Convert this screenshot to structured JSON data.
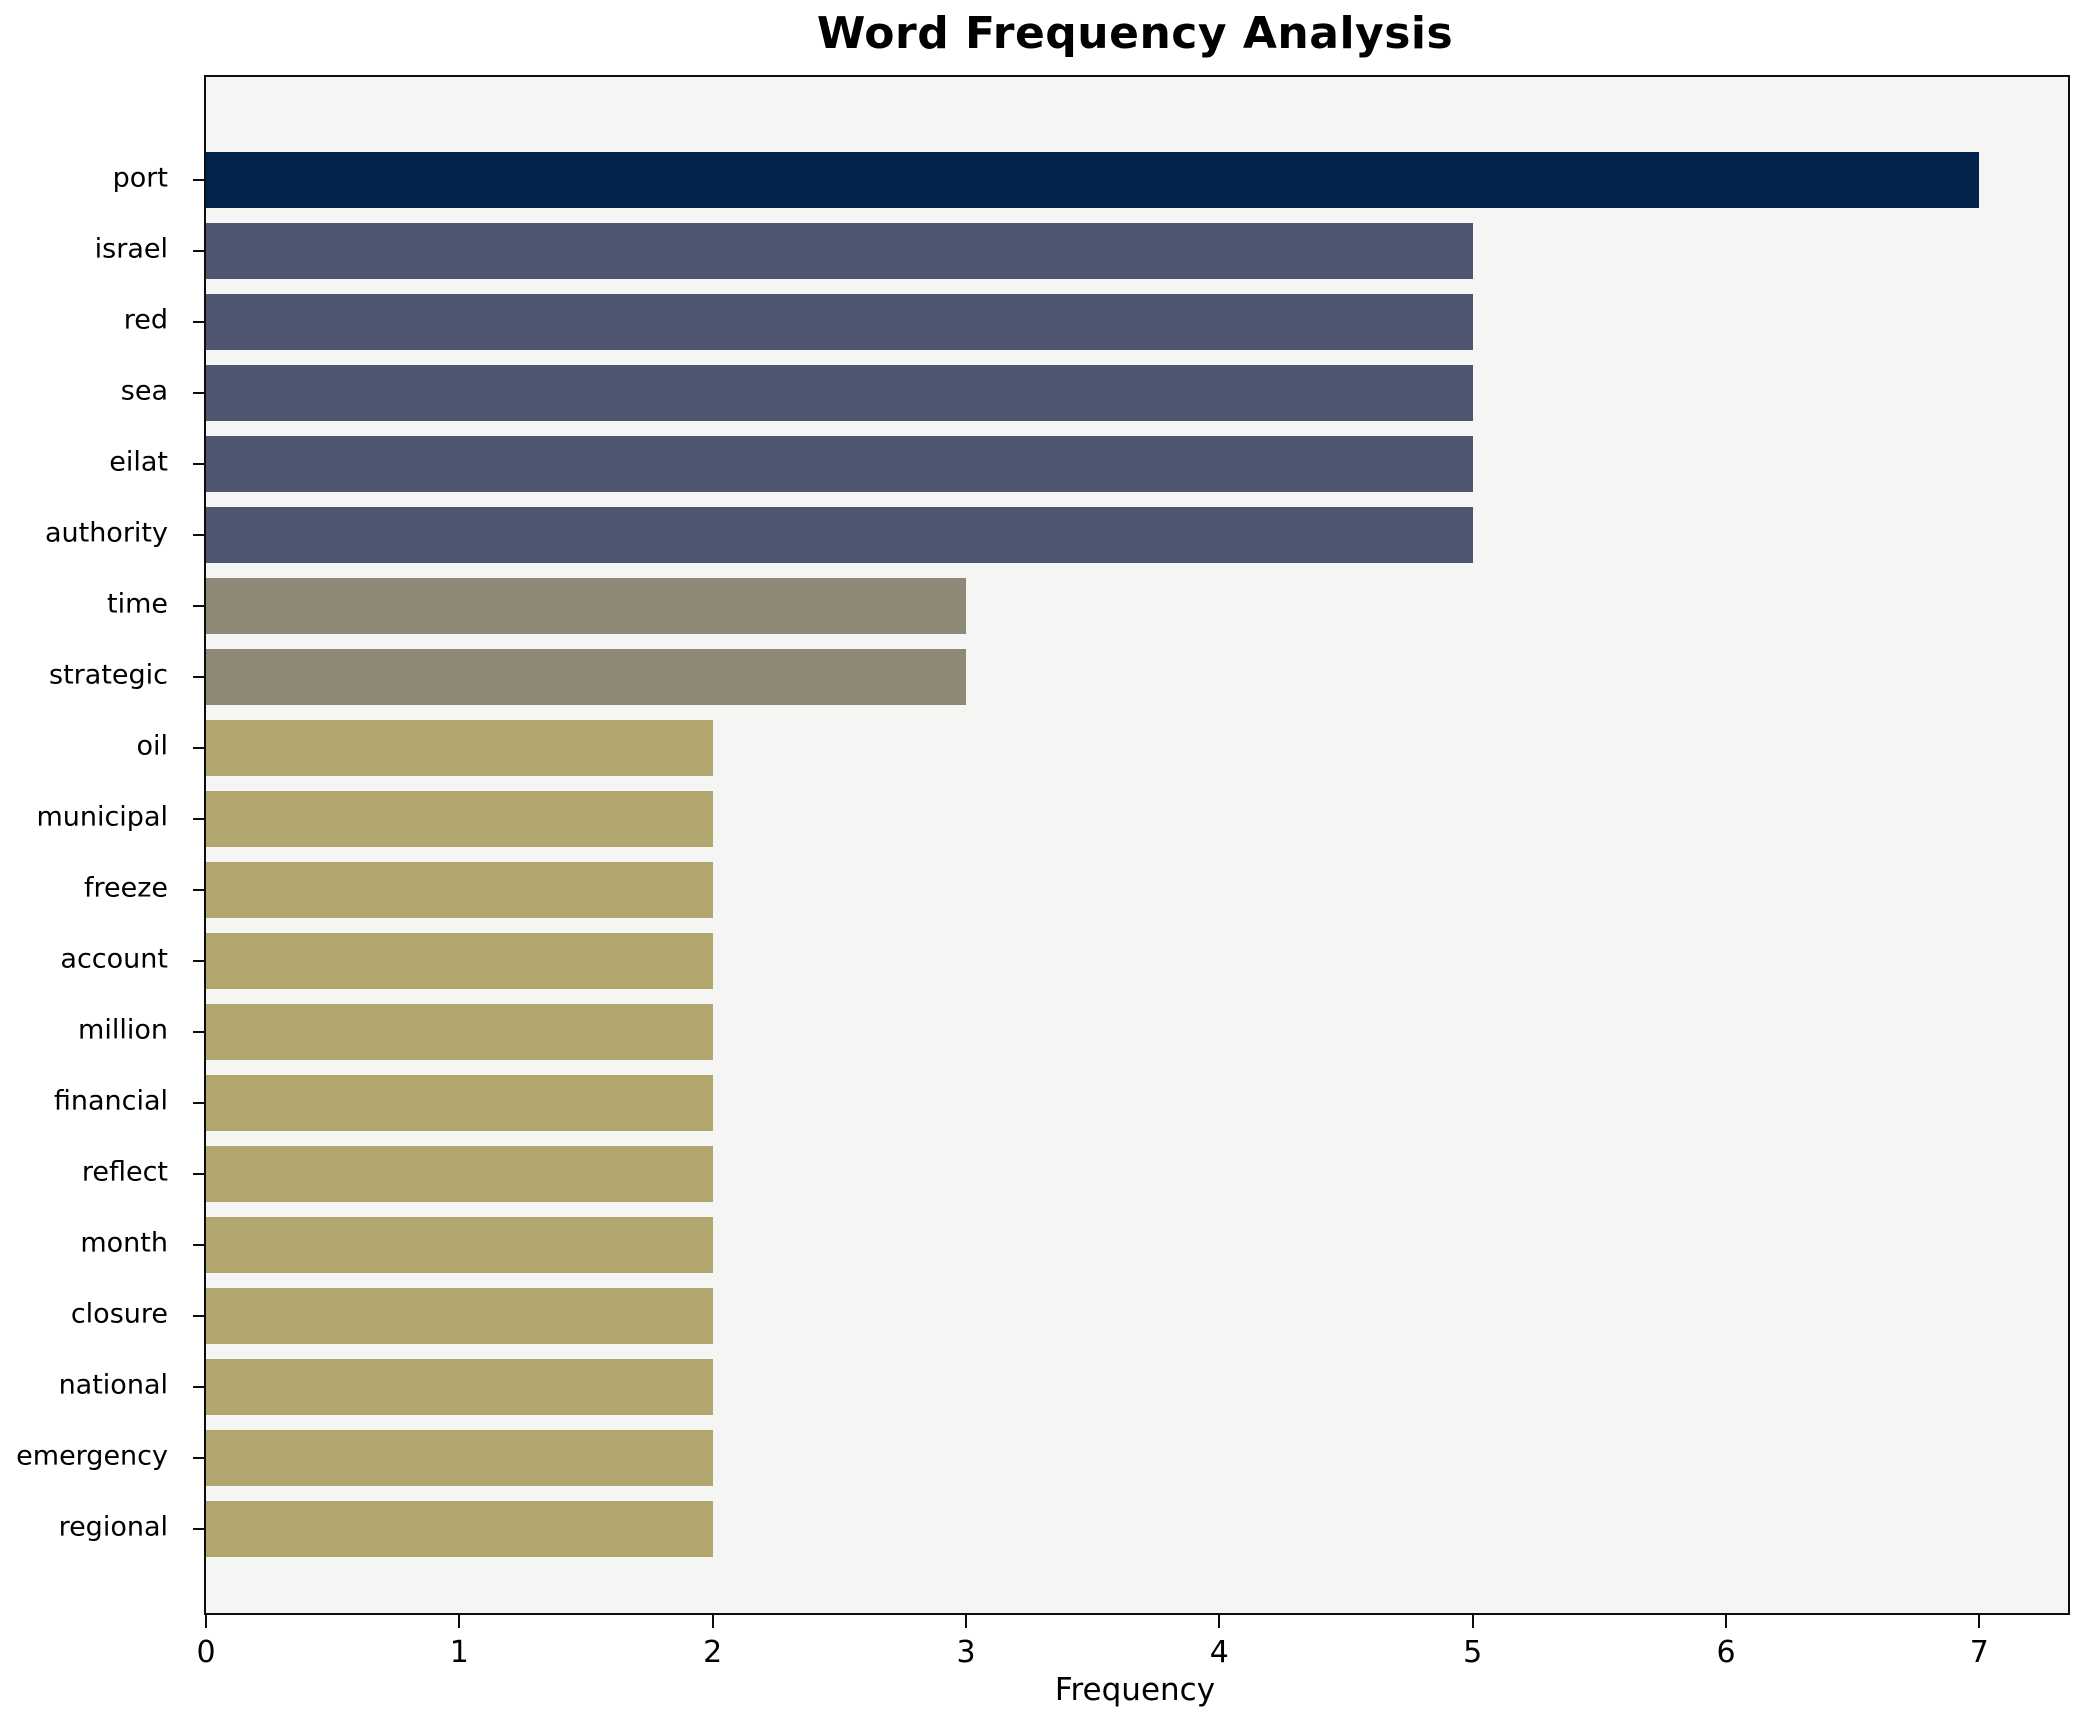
{
  "chart_data": {
    "type": "bar",
    "orientation": "horizontal",
    "title": "Word Frequency Analysis",
    "xlabel": "Frequency",
    "ylabel": "",
    "categories": [
      "port",
      "israel",
      "red",
      "sea",
      "eilat",
      "authority",
      "time",
      "strategic",
      "oil",
      "municipal",
      "freeze",
      "account",
      "million",
      "financial",
      "reflect",
      "month",
      "closure",
      "national",
      "emergency",
      "regional"
    ],
    "values": [
      7,
      5,
      5,
      5,
      5,
      5,
      3,
      3,
      2,
      2,
      2,
      2,
      2,
      2,
      2,
      2,
      2,
      2,
      2,
      2
    ],
    "bar_colors": [
      "#02234c",
      "#4d566e",
      "#4d566e",
      "#4d566e",
      "#4d566e",
      "#4d566e",
      "#8e8877",
      "#8e8877",
      "#b1a66e",
      "#b1a66e",
      "#b1a66e",
      "#b1a66e",
      "#b1a66e",
      "#b1a66e",
      "#b1a66e",
      "#b1a66e",
      "#b1a66e",
      "#b1a66e",
      "#b1a66e",
      "#b1a66e"
    ],
    "xticks": [
      0,
      1,
      2,
      3,
      4,
      5,
      6,
      7
    ],
    "xlim": [
      0,
      7.35
    ],
    "grid": false,
    "legend": "none",
    "plot_background": "#f5f5f3",
    "figure_background": "#ffffff",
    "spine_color": "#0d0d0d"
  }
}
